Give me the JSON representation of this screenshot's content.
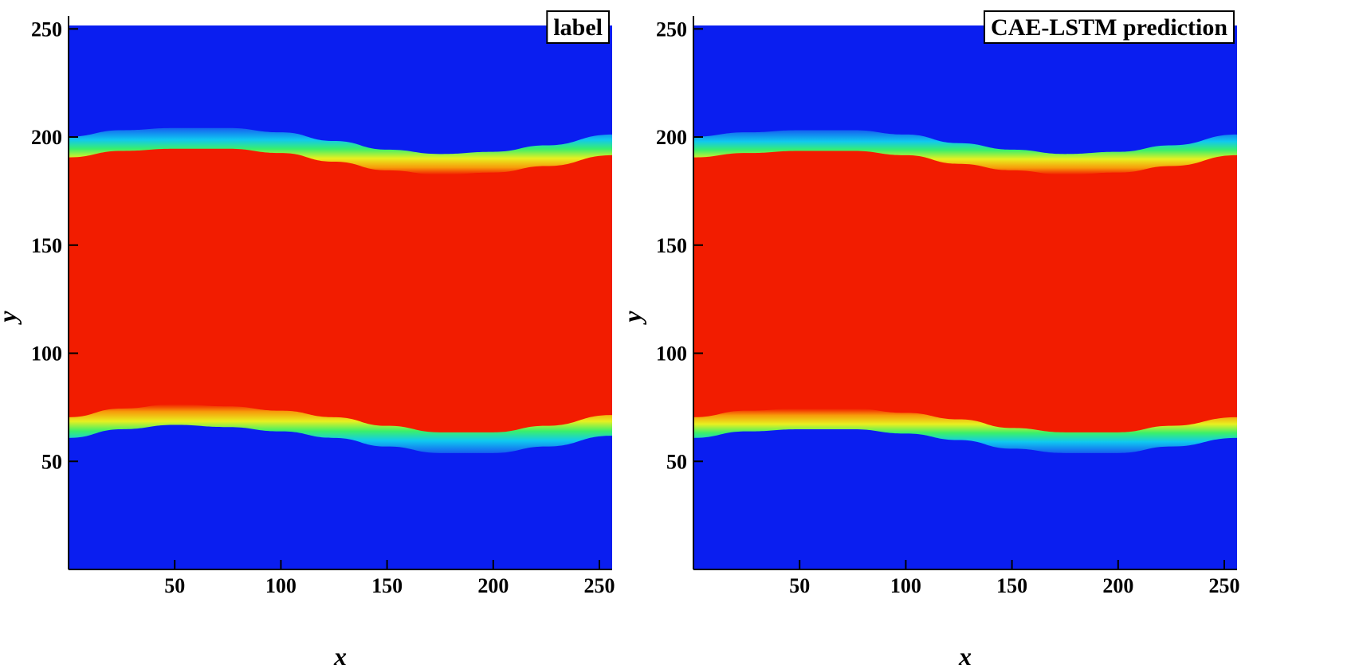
{
  "chart_data": [
    {
      "type": "heatmap",
      "title": "label",
      "xlabel": "x",
      "ylabel": "y",
      "xlim": [
        0,
        256
      ],
      "ylim": [
        0,
        256
      ],
      "x_ticks": [
        50,
        100,
        150,
        200,
        250
      ],
      "y_ticks": [
        50,
        100,
        150,
        200,
        250
      ],
      "colormap": "jet",
      "field": {
        "description_points_x": [
          0,
          25,
          50,
          75,
          100,
          125,
          150,
          175,
          200,
          225,
          256
        ],
        "upper_interface_y": [
          195,
          198,
          199,
          199,
          197,
          193,
          189,
          187,
          188,
          191,
          196
        ],
        "lower_interface_y": [
          66,
          70,
          72,
          71,
          69,
          66,
          62,
          59,
          59,
          62,
          67
        ],
        "inside_color": "#f21c00",
        "outside_color": "#0a1ef0"
      }
    },
    {
      "type": "heatmap",
      "title": "CAE-LSTM prediction",
      "xlabel": "x",
      "ylabel": "y",
      "xlim": [
        0,
        256
      ],
      "ylim": [
        0,
        256
      ],
      "x_ticks": [
        50,
        100,
        150,
        200,
        250
      ],
      "y_ticks": [
        50,
        100,
        150,
        200,
        250
      ],
      "colormap": "jet",
      "field": {
        "description_points_x": [
          0,
          25,
          50,
          75,
          100,
          125,
          150,
          175,
          200,
          225,
          256
        ],
        "upper_interface_y": [
          195,
          197,
          198,
          198,
          196,
          192,
          189,
          187,
          188,
          191,
          196
        ],
        "lower_interface_y": [
          66,
          69,
          70,
          70,
          68,
          65,
          61,
          59,
          59,
          62,
          66
        ],
        "inside_color": "#f21c00",
        "outside_color": "#0a1ef0"
      }
    }
  ]
}
